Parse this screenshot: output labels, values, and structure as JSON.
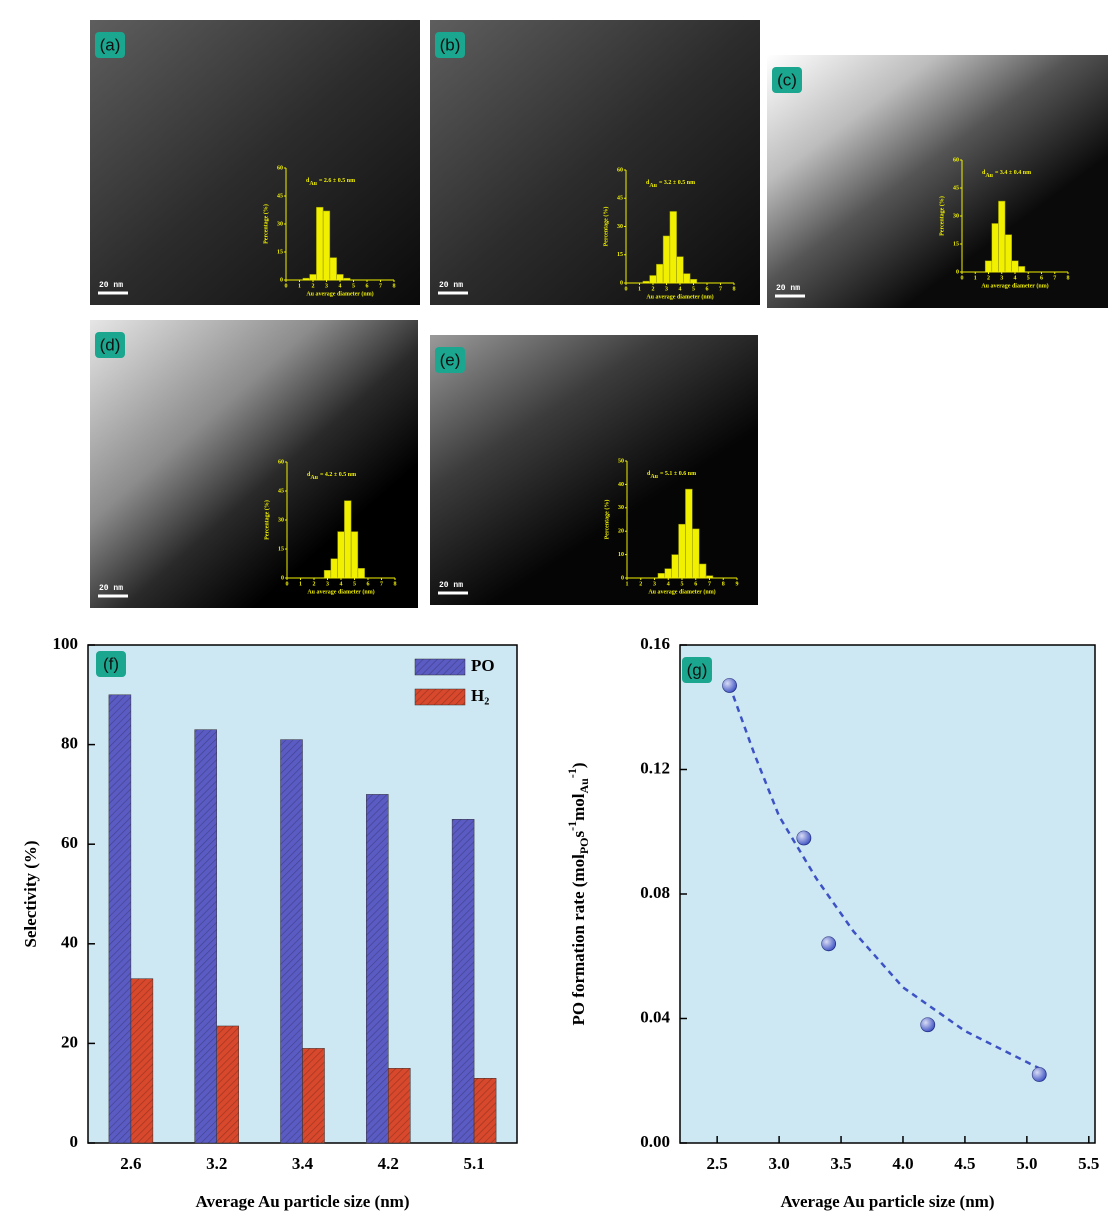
{
  "chart_data": [
    {
      "type": "histogram",
      "panel": "(a)",
      "scale_bar": "20 nm",
      "annotation": {
        "base": "d",
        "sub": "Au",
        "text": "= 2.6 ± 0.5 nm"
      },
      "xlabel": "Au average diameter (nm)",
      "ylabel": "Percentage (%)",
      "color": "#f0f000",
      "bins": [
        1.25,
        1.75,
        2.25,
        2.75,
        3.25,
        3.75,
        4.25,
        4.75
      ],
      "values": [
        1,
        3,
        39,
        37,
        12,
        3,
        1
      ],
      "xlim": [
        0,
        8
      ],
      "xticks": [
        0,
        1,
        2,
        3,
        4,
        5,
        6,
        7,
        8
      ],
      "ylim": [
        0,
        60
      ],
      "yticks": [
        0,
        15,
        30,
        45,
        60
      ]
    },
    {
      "type": "histogram",
      "panel": "(b)",
      "scale_bar": "20 nm",
      "annotation": {
        "base": "d",
        "sub": "Au",
        "text": "= 3.2 ± 0.5 nm"
      },
      "xlabel": "Au average diameter (nm)",
      "ylabel": "Percentage (%)",
      "color": "#f0f000",
      "bins": [
        1.25,
        1.75,
        2.25,
        2.75,
        3.25,
        3.75,
        4.25,
        4.75,
        5.25
      ],
      "values": [
        1,
        4,
        10,
        25,
        38,
        14,
        5,
        2
      ],
      "xlim": [
        0,
        8
      ],
      "xticks": [
        0,
        1,
        2,
        3,
        4,
        5,
        6,
        7,
        8
      ],
      "ylim": [
        0,
        60
      ],
      "yticks": [
        0,
        15,
        30,
        45,
        60
      ]
    },
    {
      "type": "histogram",
      "panel": "(c)",
      "scale_bar": "20 nm",
      "annotation": {
        "base": "d",
        "sub": "Au",
        "text": "= 3.4 ± 0.4 nm"
      },
      "xlabel": "Au average diameter (nm)",
      "ylabel": "Percentage (%)",
      "color": "#f0f000",
      "bins": [
        1.75,
        2.25,
        2.75,
        3.25,
        3.75,
        4.25,
        4.75
      ],
      "values": [
        6,
        26,
        38,
        20,
        6,
        3
      ],
      "xlim": [
        0,
        8
      ],
      "xticks": [
        0,
        1,
        2,
        3,
        4,
        5,
        6,
        7,
        8
      ],
      "ylim": [
        0,
        60
      ],
      "yticks": [
        0,
        15,
        30,
        45,
        60
      ]
    },
    {
      "type": "histogram",
      "panel": "(d)",
      "scale_bar": "20 nm",
      "annotation": {
        "base": "d",
        "sub": "Au",
        "text": "= 4.2 ± 0.5 nm"
      },
      "xlabel": "Au average diameter (nm)",
      "ylabel": "Percentage (%)",
      "color": "#f0f000",
      "bins": [
        2.75,
        3.25,
        3.75,
        4.25,
        4.75,
        5.25,
        5.75
      ],
      "values": [
        4,
        10,
        24,
        40,
        24,
        5
      ],
      "xlim": [
        0,
        8
      ],
      "xticks": [
        0,
        1,
        2,
        3,
        4,
        5,
        6,
        7,
        8
      ],
      "ylim": [
        0,
        60
      ],
      "yticks": [
        0,
        15,
        30,
        45,
        60
      ]
    },
    {
      "type": "histogram",
      "panel": "(e)",
      "scale_bar": "20 nm",
      "annotation": {
        "base": "d",
        "sub": "Au",
        "text": "= 5.1 ± 0.6 nm"
      },
      "xlabel": "Au average diameter (nm)",
      "ylabel": "Percentage (%)",
      "color": "#f0f000",
      "bins": [
        3.25,
        3.75,
        4.25,
        4.75,
        5.25,
        5.75,
        6.25,
        6.75,
        7.25
      ],
      "values": [
        2,
        4,
        10,
        23,
        38,
        21,
        6,
        1
      ],
      "xlim": [
        1,
        9
      ],
      "xticks": [
        1,
        2,
        3,
        4,
        5,
        6,
        7,
        8,
        9
      ],
      "ylim": [
        0,
        50
      ],
      "yticks": [
        0,
        10,
        20,
        30,
        40,
        50
      ]
    },
    {
      "type": "bar",
      "panel": "(f)",
      "xlabel": "Average Au particle size (nm)",
      "ylabel": "Selectivity (%)",
      "categories": [
        "2.6",
        "3.2",
        "3.4",
        "4.2",
        "5.1"
      ],
      "series": [
        {
          "name": "PO",
          "color": "#5b5bc4",
          "values": [
            90,
            83,
            81,
            70,
            65
          ]
        },
        {
          "name": "H₂",
          "color": "#d8482c",
          "values": [
            33,
            23.5,
            19,
            15,
            13
          ]
        }
      ],
      "ylim": [
        0,
        100
      ],
      "yticks": [
        0,
        20,
        40,
        60,
        80,
        100
      ],
      "legend": "upper right",
      "background": "#cde7f3"
    },
    {
      "type": "scatter",
      "panel": "(g)",
      "xlabel": "Average Au particle size (nm)",
      "ylabel": [
        {
          "text": "PO formation rate (mol"
        },
        {
          "text": "PO",
          "shift": "sub"
        },
        {
          "text": "s"
        },
        {
          "text": "-1",
          "shift": "super"
        },
        {
          "text": "mol"
        },
        {
          "text": "Au",
          "shift": "sub"
        },
        {
          "text": "-1",
          "shift": "super"
        },
        {
          "text": ")"
        }
      ],
      "x": [
        2.6,
        3.2,
        3.4,
        4.2,
        5.1
      ],
      "values": [
        0.147,
        0.098,
        0.064,
        0.038,
        0.022
      ],
      "color": "#3d52c4",
      "fit": {
        "x": [
          2.6,
          2.8,
          3.0,
          3.3,
          3.6,
          4.0,
          4.5,
          5.1
        ],
        "y": [
          0.147,
          0.125,
          0.105,
          0.085,
          0.068,
          0.05,
          0.036,
          0.024
        ],
        "color": "#3d52c4"
      },
      "xlim": [
        2.2,
        5.55
      ],
      "xticks": [
        2.5,
        {
          "value": 3,
          "label": "3.0"
        },
        3.5,
        {
          "value": 4,
          "label": "4.0"
        },
        4.5,
        {
          "value": 5,
          "label": "5.0"
        },
        5.5
      ],
      "ylim": [
        0,
        0.16
      ],
      "yticks": [
        {
          "value": 0,
          "label": "0.00"
        },
        0.04,
        0.08,
        0.12,
        0.16
      ],
      "background": "#cde7f3"
    }
  ]
}
